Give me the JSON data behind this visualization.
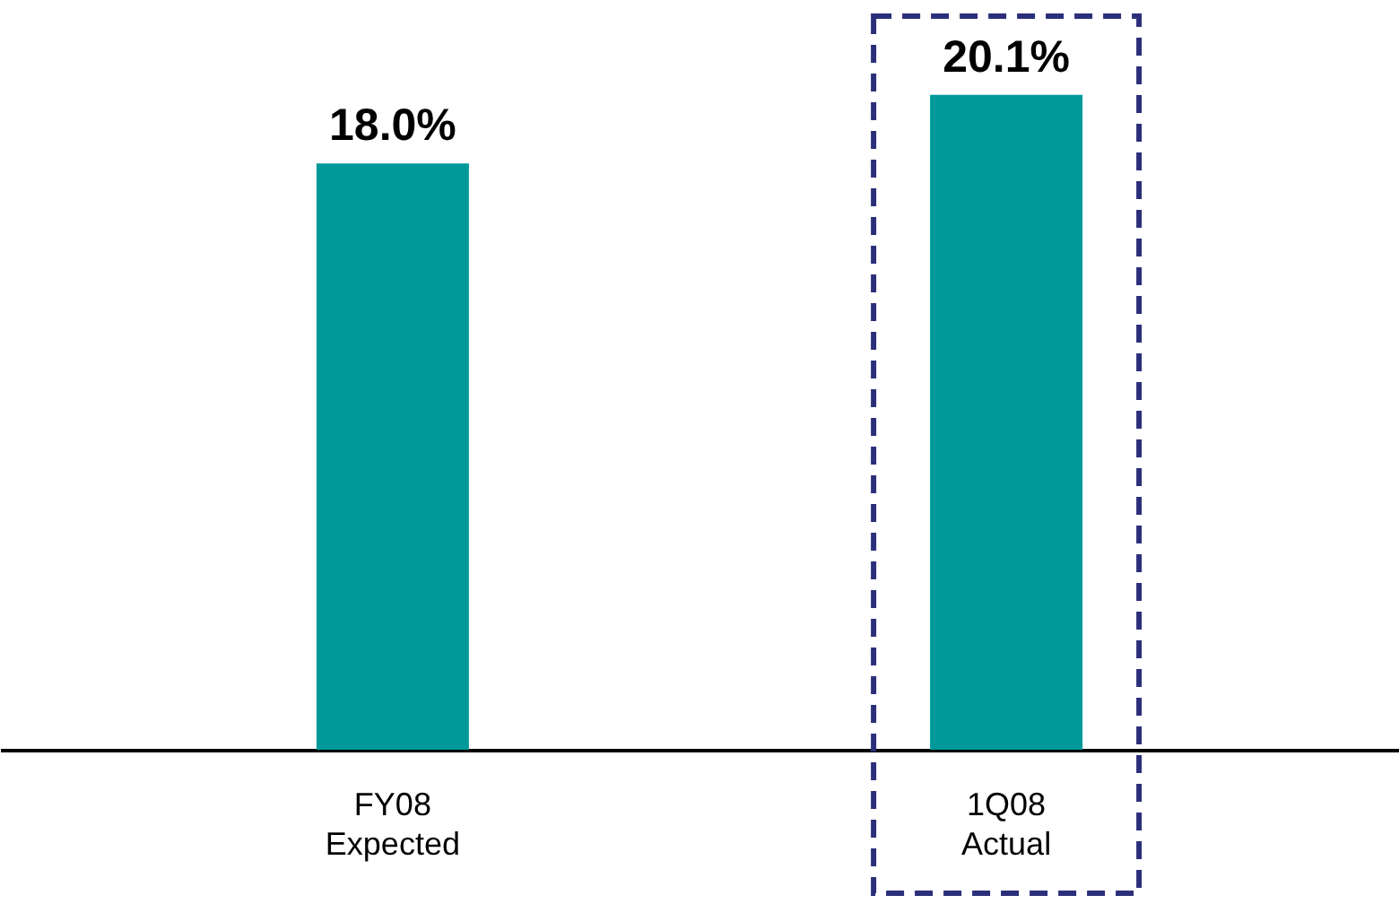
{
  "chart_data": {
    "type": "bar",
    "categories": [
      "FY08\nExpected",
      "1Q08\nActual"
    ],
    "values": [
      18.0,
      20.1
    ],
    "value_labels": [
      "18.0%",
      "20.1%"
    ],
    "color": "#009999",
    "grid": false
  }
}
